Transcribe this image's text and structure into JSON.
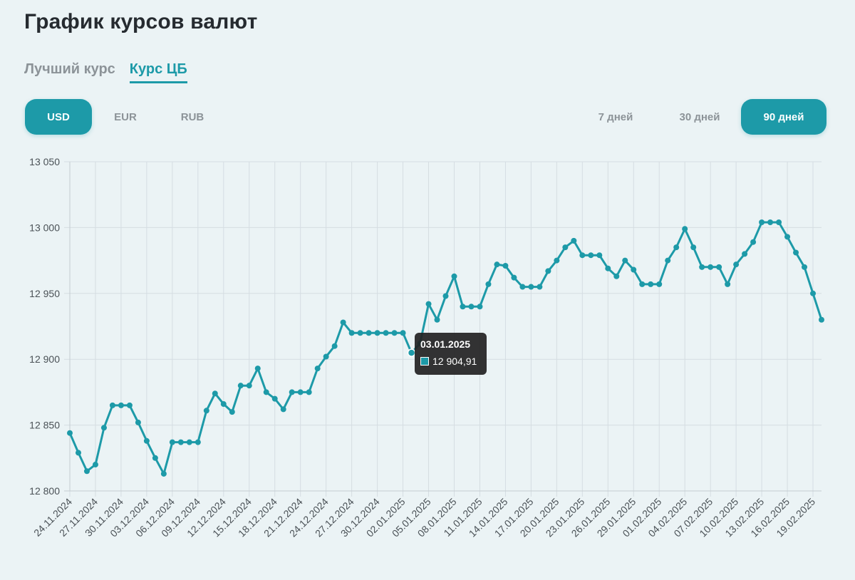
{
  "page": {
    "title": "График курсов валют"
  },
  "rate_tabs": [
    {
      "label": "Лучший курс",
      "active": false
    },
    {
      "label": "Курс ЦБ",
      "active": true
    }
  ],
  "currency_buttons": [
    {
      "label": "USD",
      "active": true
    },
    {
      "label": "EUR",
      "active": false
    },
    {
      "label": "RUB",
      "active": false
    }
  ],
  "period_buttons": [
    {
      "label": "7 дней",
      "active": false
    },
    {
      "label": "30 дней",
      "active": false
    },
    {
      "label": "90 дней",
      "active": true
    }
  ],
  "colors": {
    "accent": "#1d9aa8",
    "background": "#ebf3f5",
    "grid": "#d5dde2"
  },
  "tooltip": {
    "date": "03.01.2025",
    "value": "12 904,91"
  },
  "chart_data": {
    "type": "line",
    "ylim": [
      12800,
      13050
    ],
    "y_ticks": [
      12800,
      12850,
      12900,
      12950,
      13000,
      13050
    ],
    "y_tick_labels": [
      "12 800",
      "12 850",
      "12 900",
      "12 950",
      "13 000",
      "13 050"
    ],
    "x_tick_labels": [
      "24.11.2024",
      "27.11.2024",
      "30.11.2024",
      "03.12.2024",
      "06.12.2024",
      "09.12.2024",
      "12.12.2024",
      "15.12.2024",
      "18.12.2024",
      "21.12.2024",
      "24.12.2024",
      "27.12.2024",
      "30.12.2024",
      "02.01.2025",
      "05.01.2025",
      "08.01.2025",
      "11.01.2025",
      "14.01.2025",
      "17.01.2025",
      "20.01.2025",
      "23.01.2025",
      "26.01.2025",
      "29.01.2025",
      "01.02.2025",
      "04.02.2025",
      "07.02.2025",
      "10.02.2025",
      "13.02.2025",
      "16.02.2025",
      "19.02.2025"
    ],
    "x_start": "24.11.2024",
    "values": [
      12844,
      12829,
      12815,
      12820,
      12848,
      12865,
      12865,
      12865,
      12852,
      12838,
      12825,
      12813,
      12837,
      12837,
      12837,
      12837,
      12861,
      12874,
      12866,
      12860,
      12880,
      12880,
      12893,
      12875,
      12870,
      12862,
      12875,
      12875,
      12875,
      12893,
      12902,
      12910,
      12928,
      12920,
      12920,
      12920,
      12920,
      12920,
      12920,
      12920,
      12904.91,
      12912,
      12942,
      12930,
      12948,
      12963,
      12940,
      12940,
      12940,
      12957,
      12972,
      12971,
      12962,
      12955,
      12955,
      12955,
      12967,
      12975,
      12985,
      12990,
      12979,
      12979,
      12979,
      12969,
      12963,
      12975,
      12968,
      12957,
      12957,
      12957,
      12975,
      12985,
      12999,
      12985,
      12970,
      12970,
      12970,
      12957,
      12972,
      12980,
      12989,
      13004,
      13004,
      13004,
      12993,
      12981,
      12970,
      12950,
      12930
    ],
    "grid": true,
    "legend": "none"
  }
}
